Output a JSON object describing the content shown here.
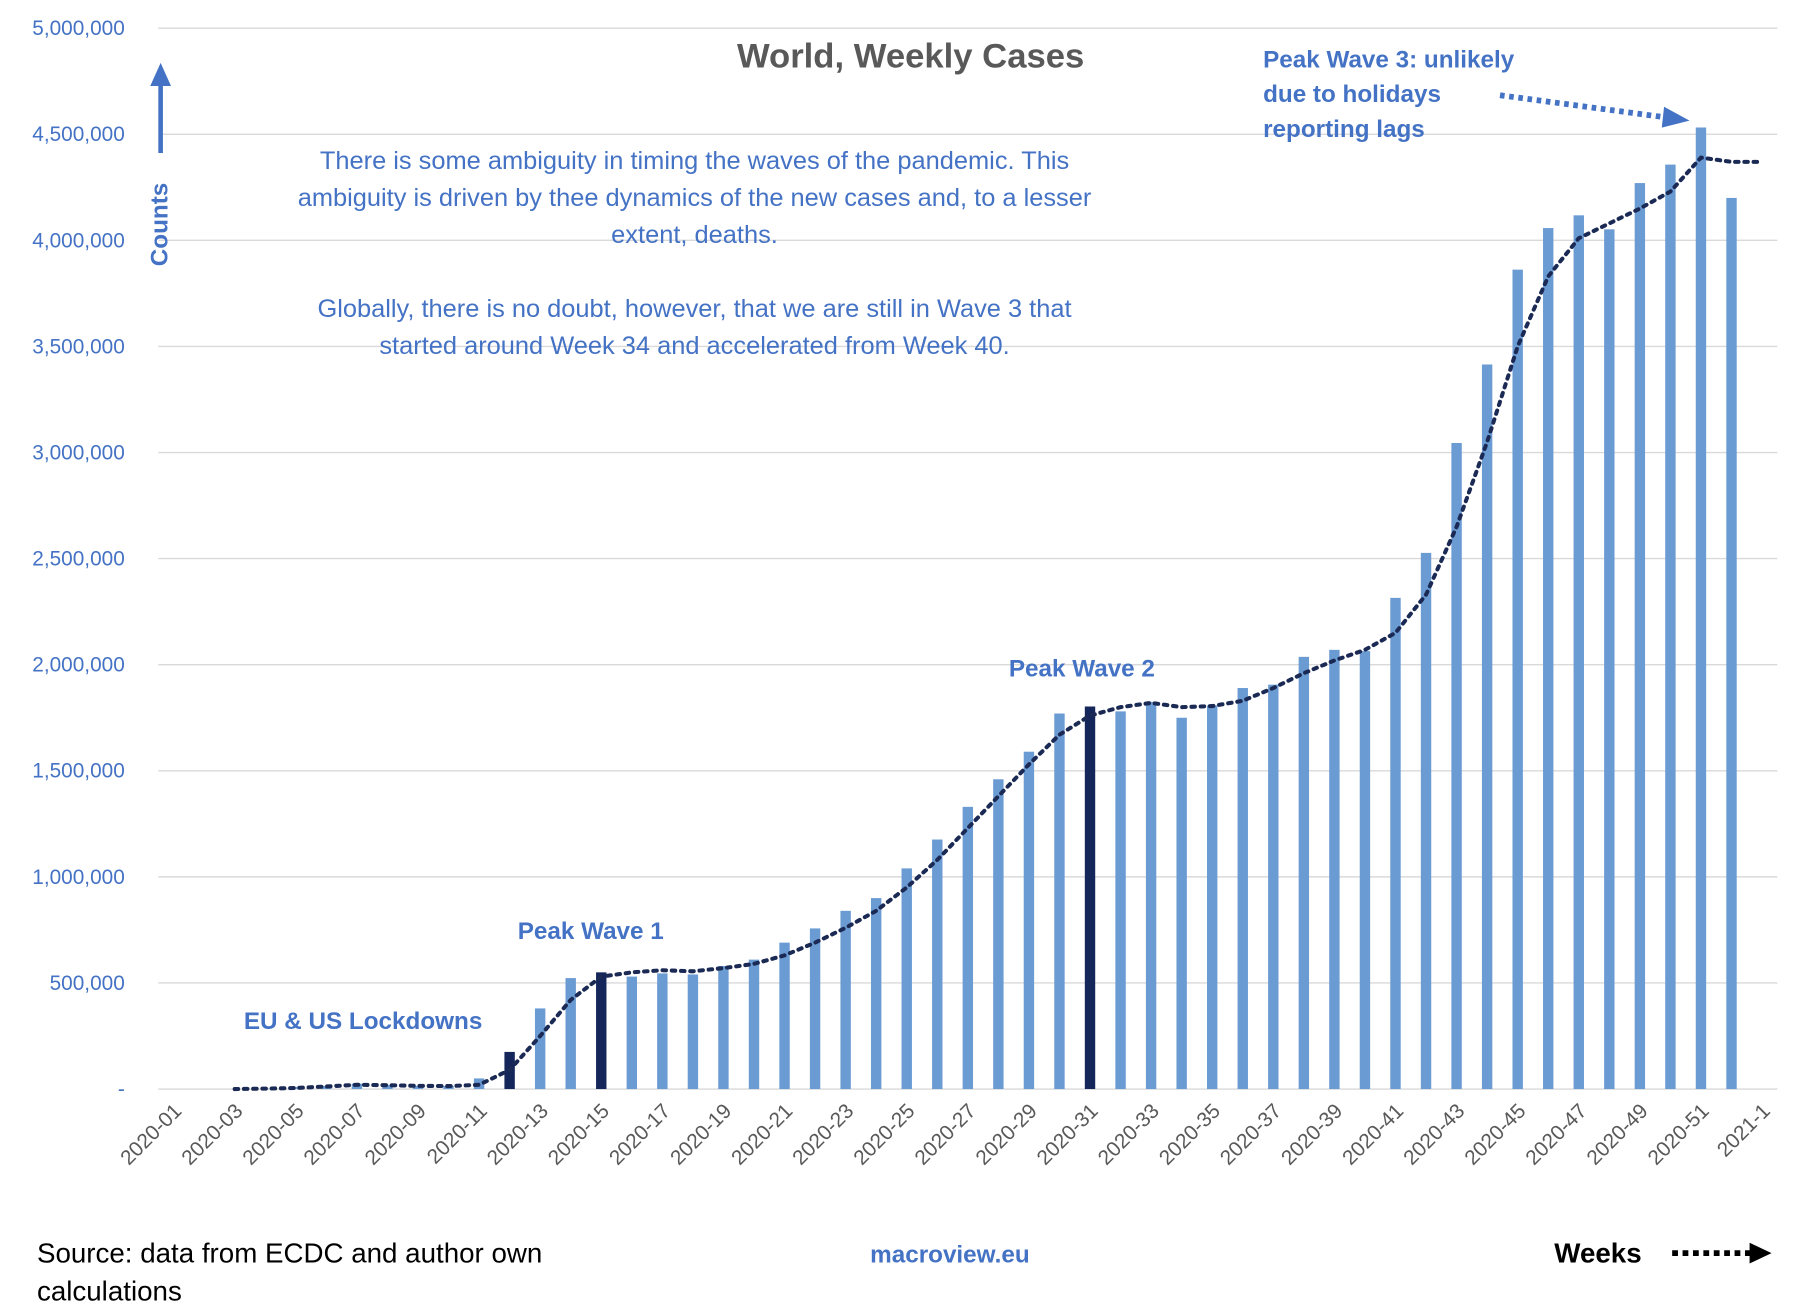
{
  "chart_data": {
    "type": "bar",
    "title": "World, Weekly Cases",
    "ylabel": "Counts",
    "xlabel": "Weeks",
    "ylim": [
      0,
      5000000
    ],
    "grid": true,
    "yticks": [
      0,
      500000,
      1000000,
      1500000,
      2000000,
      2500000,
      3000000,
      3500000,
      4000000,
      4500000,
      5000000
    ],
    "ytick_labels": [
      "-",
      "500,000",
      "1,000,000",
      "1,500,000",
      "2,000,000",
      "2,500,000",
      "3,000,000",
      "3,500,000",
      "4,000,000",
      "4,500,000",
      "5,000,000"
    ],
    "categories": [
      "2020-01",
      "2020-02",
      "2020-03",
      "2020-04",
      "2020-05",
      "2020-06",
      "2020-07",
      "2020-08",
      "2020-09",
      "2020-10",
      "2020-11",
      "2020-12",
      "2020-13",
      "2020-14",
      "2020-15",
      "2020-16",
      "2020-17",
      "2020-18",
      "2020-19",
      "2020-20",
      "2020-21",
      "2020-22",
      "2020-23",
      "2020-24",
      "2020-25",
      "2020-26",
      "2020-27",
      "2020-28",
      "2020-29",
      "2020-30",
      "2020-31",
      "2020-32",
      "2020-33",
      "2020-34",
      "2020-35",
      "2020-36",
      "2020-37",
      "2020-38",
      "2020-39",
      "2020-40",
      "2020-41",
      "2020-42",
      "2020-43",
      "2020-44",
      "2020-45",
      "2020-46",
      "2020-47",
      "2020-48",
      "2020-49",
      "2020-50",
      "2020-51",
      "2020-52",
      "2021-1"
    ],
    "xtick_labels_shown": [
      "2020-01",
      "2020-03",
      "2020-05",
      "2020-07",
      "2020-09",
      "2020-11",
      "2020-13",
      "2020-15",
      "2020-17",
      "2020-19",
      "2020-21",
      "2020-23",
      "2020-25",
      "2020-27",
      "2020-29",
      "2020-31",
      "2020-33",
      "2020-35",
      "2020-37",
      "2020-39",
      "2020-41",
      "2020-43",
      "2020-45",
      "2020-47",
      "2020-49",
      "2020-51",
      "2021-1"
    ],
    "series": [
      {
        "type": "bar",
        "values": [
          0,
          0,
          0,
          2000,
          10000,
          15000,
          25000,
          20000,
          15000,
          15000,
          50000,
          175000,
          380000,
          523000,
          550000,
          530000,
          545000,
          540000,
          580000,
          610000,
          690000,
          757000,
          840000,
          900000,
          1040000,
          1176000,
          1330000,
          1460000,
          1590000,
          1770000,
          1803000,
          1780000,
          1825000,
          1750000,
          1808000,
          1890000,
          1906000,
          2037000,
          2070000,
          2064000,
          2315000,
          2527000,
          3045000,
          3415000,
          3862000,
          4058000,
          4118000,
          4052000,
          4270000,
          4357000,
          4532000,
          4200000,
          null
        ],
        "highlight_categories": [
          "2020-12",
          "2020-15",
          "2020-31"
        ]
      },
      {
        "type": "line",
        "style": "dotted",
        "values": [
          null,
          null,
          0,
          2000,
          5000,
          12000,
          20000,
          18000,
          15000,
          14000,
          20000,
          90000,
          250000,
          420000,
          530000,
          550000,
          560000,
          555000,
          570000,
          590000,
          630000,
          690000,
          760000,
          840000,
          950000,
          1080000,
          1230000,
          1380000,
          1530000,
          1670000,
          1760000,
          1800000,
          1820000,
          1800000,
          1805000,
          1830000,
          1890000,
          1960000,
          2020000,
          2070000,
          2150000,
          2330000,
          2650000,
          3050000,
          3500000,
          3830000,
          4010000,
          4080000,
          4150000,
          4230000,
          4390000,
          4370000,
          4370000
        ]
      }
    ],
    "annotations": {
      "note_lines": [
        "There is some ambiguity in timing the waves of the pandemic. This",
        "ambiguity is driven by thee dynamics of the new cases and, to a lesser",
        "extent, deaths.",
        "",
        "Globally, there is no doubt, however, that we are still in Wave 3 that",
        "started around Week 34 and accelerated from Week 40."
      ],
      "lockdowns": "EU & US Lockdowns",
      "peak_wave_1": "Peak Wave 1",
      "peak_wave_2": "Peak Wave 2",
      "peak_wave_3": [
        "Peak Wave 3: unlikely",
        "due to holidays",
        "reporting lags"
      ]
    },
    "colors": {
      "bar": "#6b9bd3",
      "highlight_bar": "#14265a",
      "trend": "#1b2a55",
      "text": "#4472c4",
      "grid": "#d9d9d9"
    }
  },
  "footer": {
    "source_lines": [
      "Source: data from ECDC and author own",
      "calculations"
    ],
    "site": "macroview.eu",
    "weeks": "Weeks"
  }
}
